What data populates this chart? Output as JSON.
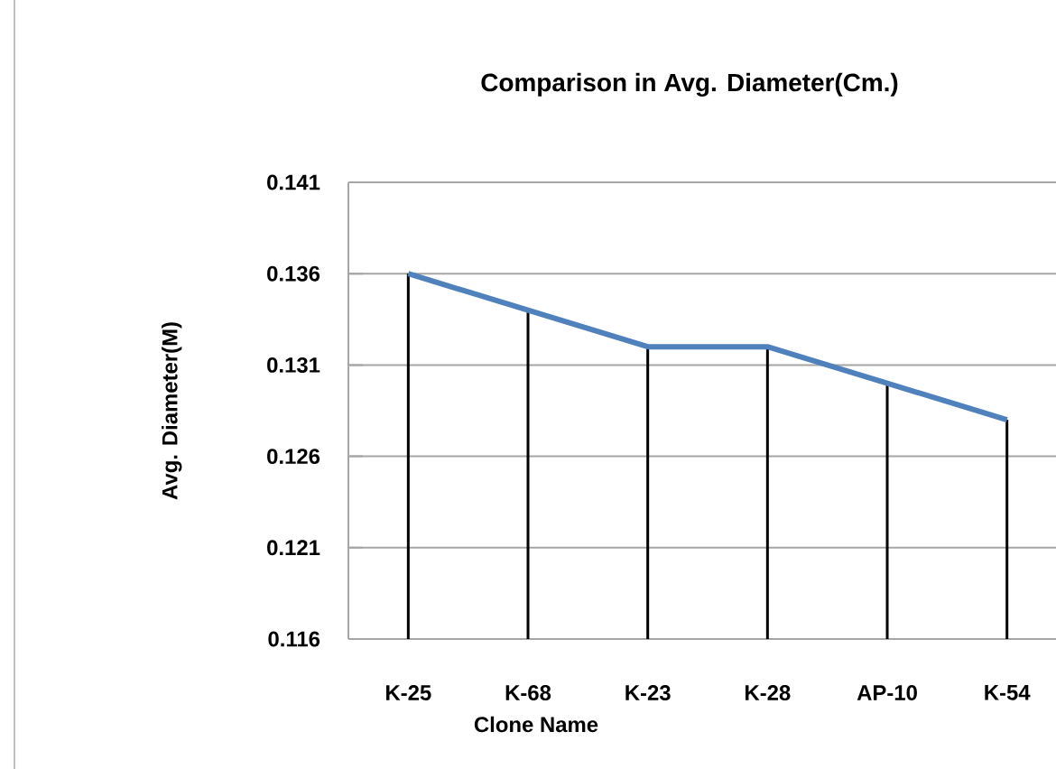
{
  "chart_data": {
    "type": "line",
    "title": "Comparison in Avg. Diameter(Cm.)",
    "xlabel": "Clone Name",
    "ylabel": "Avg. Diameter(M)",
    "categories": [
      "K-25",
      "K-68",
      "K-23",
      "K-28",
      "AP-10",
      "K-54"
    ],
    "series": [
      {
        "type": "bar",
        "color": "#000000",
        "values": [
          0.136,
          0.134,
          0.132,
          0.132,
          0.13,
          0.128
        ]
      },
      {
        "color": "#4f81bd",
        "values": [
          0.136,
          0.134,
          0.132,
          0.132,
          0.13,
          0.128
        ]
      }
    ],
    "ylim": [
      0.116,
      0.141
    ],
    "yticks": [
      0.116,
      0.121,
      0.126,
      0.131,
      0.136,
      0.141
    ],
    "grid": "y"
  }
}
